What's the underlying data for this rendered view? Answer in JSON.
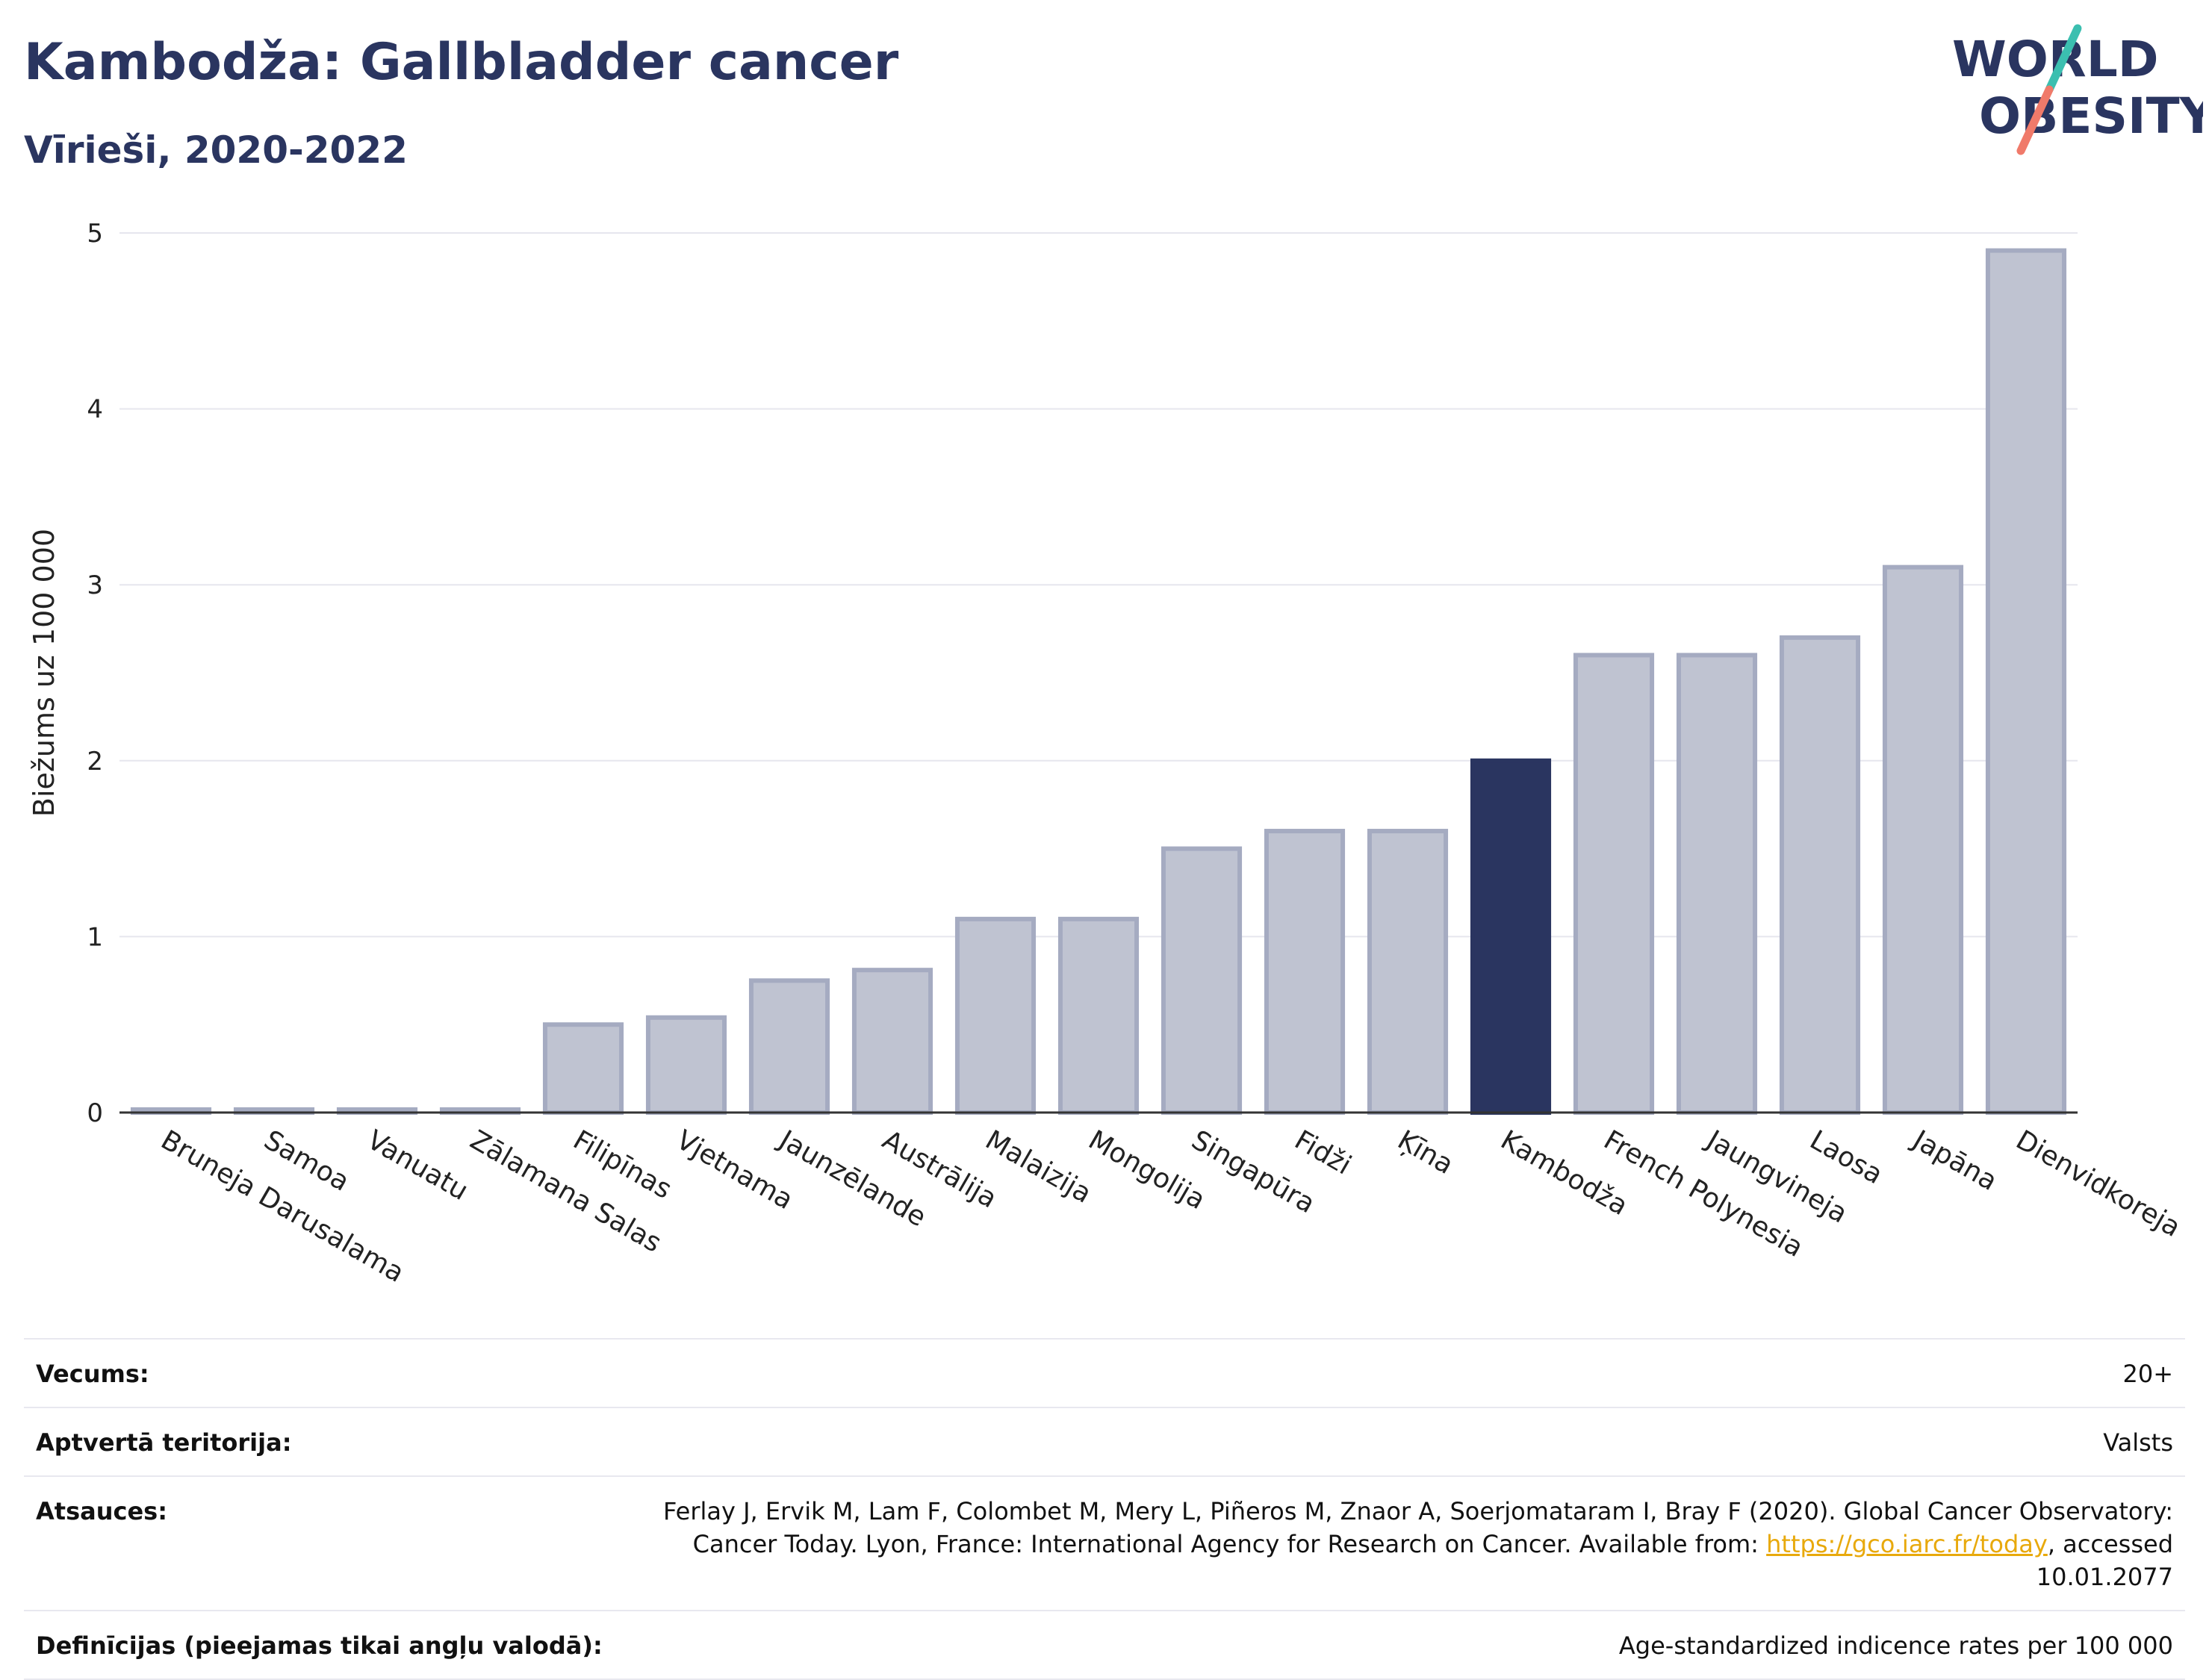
{
  "header": {
    "title": "Kambodža: Gallbladder cancer",
    "subtitle": "Vīrieši, 2020-2022"
  },
  "logo": {
    "line1": "WORLD",
    "line2": "OBESITY",
    "slash_colors": [
      "#3bbfb0",
      "#f07a6a"
    ]
  },
  "colors": {
    "highlight": "#2a3560",
    "bar": "#bfc3d1",
    "bar_border": "#a5abc1",
    "link": "#e8a90c"
  },
  "chart_data": {
    "type": "bar",
    "ylabel": "Biežums uz 100 000",
    "ylim": [
      0,
      5
    ],
    "yticks": [
      0,
      1,
      2,
      3,
      4,
      5
    ],
    "grid": true,
    "categories": [
      "Bruneja Darusalama",
      "Samoa",
      "Vanuatu",
      "Zālamana Salas",
      "Filipīnas",
      "Vjetnama",
      "Jaunzēlande",
      "Austrālija",
      "Malaizija",
      "Mongolija",
      "Singapūra",
      "Fidži",
      "Ķīna",
      "Kambodža",
      "French Polynesia",
      "Jaungvineja",
      "Laosa",
      "Japāna",
      "Dienvidkoreja"
    ],
    "values": [
      0,
      0,
      0,
      0,
      0.5,
      0.54,
      0.75,
      0.81,
      1.1,
      1.1,
      1.5,
      1.6,
      1.6,
      2.0,
      2.6,
      2.6,
      2.7,
      3.1,
      4.9
    ],
    "highlight": "Kambodža"
  },
  "meta": {
    "age_label": "Vecums:",
    "age_value": "20+",
    "coverage_label": "Aptvertā teritorija:",
    "coverage_value": "Valsts",
    "refs_label": "Atsauces:",
    "refs_text_1": "Ferlay J, Ervik M, Lam F, Colombet M, Mery L, Piñeros M, Znaor A, Soerjomataram I, Bray F (2020). Global Cancer Observatory: Cancer Today. Lyon, France: International Agency for Research on Cancer. Available from: ",
    "refs_link": "https://gco.iarc.fr/today",
    "refs_text_2": ", accessed 10.01.2077",
    "defs_label": "Definīcijas (pieejamas tikai angļu valodā):",
    "defs_value": "Age-standardized indicence rates per 100 000"
  }
}
